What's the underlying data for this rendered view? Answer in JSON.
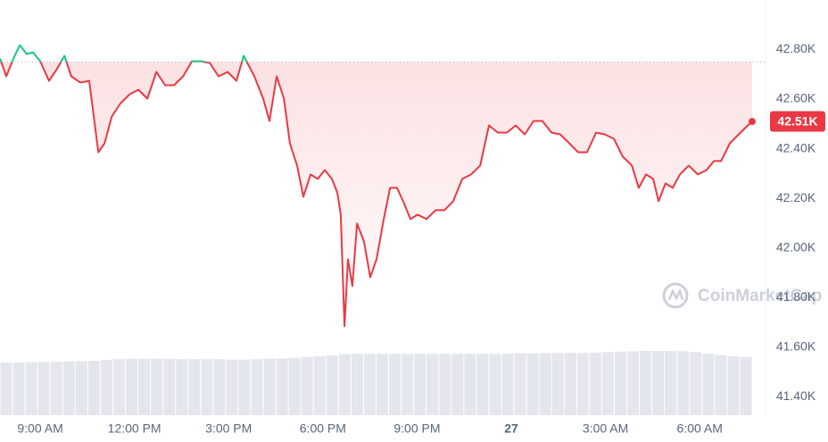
{
  "chart_data": {
    "type": "line",
    "x": [
      7.72,
      7.92,
      8.15,
      8.35,
      8.57,
      8.77,
      9.0,
      9.28,
      9.51,
      9.77,
      9.99,
      10.28,
      10.56,
      10.85,
      11.05,
      11.28,
      11.56,
      11.85,
      12.13,
      12.41,
      12.7,
      12.98,
      13.26,
      13.55,
      13.83,
      14.12,
      14.4,
      14.68,
      14.97,
      15.25,
      15.48,
      15.82,
      16.1,
      16.3,
      16.53,
      16.76,
      16.95,
      17.18,
      17.38,
      17.61,
      17.84,
      18.06,
      18.29,
      18.46,
      18.57,
      18.69,
      18.8,
      18.94,
      19.09,
      19.31,
      19.51,
      19.71,
      19.94,
      20.14,
      20.36,
      20.56,
      20.79,
      21.02,
      21.3,
      21.59,
      21.87,
      22.15,
      22.44,
      22.72,
      23.01,
      23.29,
      23.57,
      23.86,
      24.14,
      24.43,
      24.71,
      24.99,
      25.28,
      25.56,
      25.85,
      26.13,
      26.41,
      26.7,
      26.98,
      27.27,
      27.55,
      27.84,
      28.06,
      28.29,
      28.52,
      28.69,
      28.91,
      29.14,
      29.37,
      29.65,
      29.94,
      30.22,
      30.45,
      30.68,
      30.96,
      31.24,
      31.53,
      31.67
    ],
    "values": [
      42764,
      42692,
      42764,
      42818,
      42782,
      42789,
      42753,
      42674,
      42717,
      42775,
      42692,
      42667,
      42674,
      42386,
      42422,
      42530,
      42584,
      42620,
      42638,
      42602,
      42710,
      42656,
      42656,
      42692,
      42753,
      42753,
      42746,
      42692,
      42710,
      42674,
      42775,
      42692,
      42602,
      42512,
      42692,
      42602,
      42422,
      42332,
      42206,
      42296,
      42278,
      42314,
      42278,
      42224,
      42134,
      41684,
      41954,
      41846,
      42098,
      42026,
      41882,
      41954,
      42116,
      42242,
      42242,
      42188,
      42116,
      42134,
      42116,
      42152,
      42152,
      42188,
      42278,
      42296,
      42332,
      42494,
      42465,
      42465,
      42494,
      42458,
      42512,
      42512,
      42465,
      42458,
      42422,
      42386,
      42386,
      42465,
      42458,
      42440,
      42368,
      42332,
      42242,
      42296,
      42278,
      42188,
      42260,
      42242,
      42296,
      42332,
      42296,
      42314,
      42350,
      42350,
      42422,
      42458,
      42494,
      42510
    ],
    "colors": {
      "up": "#16c784",
      "down": "#ea3943"
    },
    "reference": 42750,
    "xlim": [
      7.72,
      31.67
    ],
    "ylim": [
      41325,
      43000
    ],
    "xticks": [
      {
        "value": 9,
        "label": "9:00 AM"
      },
      {
        "value": 12,
        "label": "12:00 PM"
      },
      {
        "value": 15,
        "label": "3:00 PM"
      },
      {
        "value": 18,
        "label": "6:00 PM"
      },
      {
        "value": 21,
        "label": "9:00 PM"
      },
      {
        "value": 24,
        "label": "27"
      },
      {
        "value": 27,
        "label": "3:00 AM"
      },
      {
        "value": 30,
        "label": "6:00 AM"
      }
    ],
    "yticks": [
      {
        "value": 42800,
        "label": "42.80K"
      },
      {
        "value": 42600,
        "label": "42.60K"
      },
      {
        "value": 42400,
        "label": "42.40K"
      },
      {
        "value": 42200,
        "label": "42.20K"
      },
      {
        "value": 42000,
        "label": "42.00K"
      },
      {
        "value": 41800,
        "label": "41.80K"
      },
      {
        "value": 41600,
        "label": "41.60K"
      },
      {
        "value": 41400,
        "label": "41.40K"
      }
    ],
    "current_price_label": "42.51K",
    "watermark": "CoinMarketCap",
    "volume": {
      "color": "#e3e6ec",
      "ylim": [
        0,
        10
      ],
      "values": [
        1.27,
        1.27,
        1.28,
        1.28,
        1.29,
        1.29,
        1.3,
        1.31,
        1.33,
        1.35,
        1.36,
        1.36,
        1.36,
        1.36,
        1.35,
        1.35,
        1.35,
        1.35,
        1.34,
        1.34,
        1.35,
        1.36,
        1.37,
        1.38,
        1.4,
        1.42,
        1.44,
        1.47,
        1.48,
        1.48,
        1.48,
        1.48,
        1.48,
        1.48,
        1.48,
        1.48,
        1.48,
        1.48,
        1.48,
        1.48,
        1.48,
        1.49,
        1.49,
        1.49,
        1.5,
        1.5,
        1.5,
        1.51,
        1.52,
        1.53,
        1.54,
        1.55,
        1.55,
        1.55,
        1.54,
        1.52,
        1.48,
        1.45,
        1.42,
        1.4
      ]
    }
  }
}
